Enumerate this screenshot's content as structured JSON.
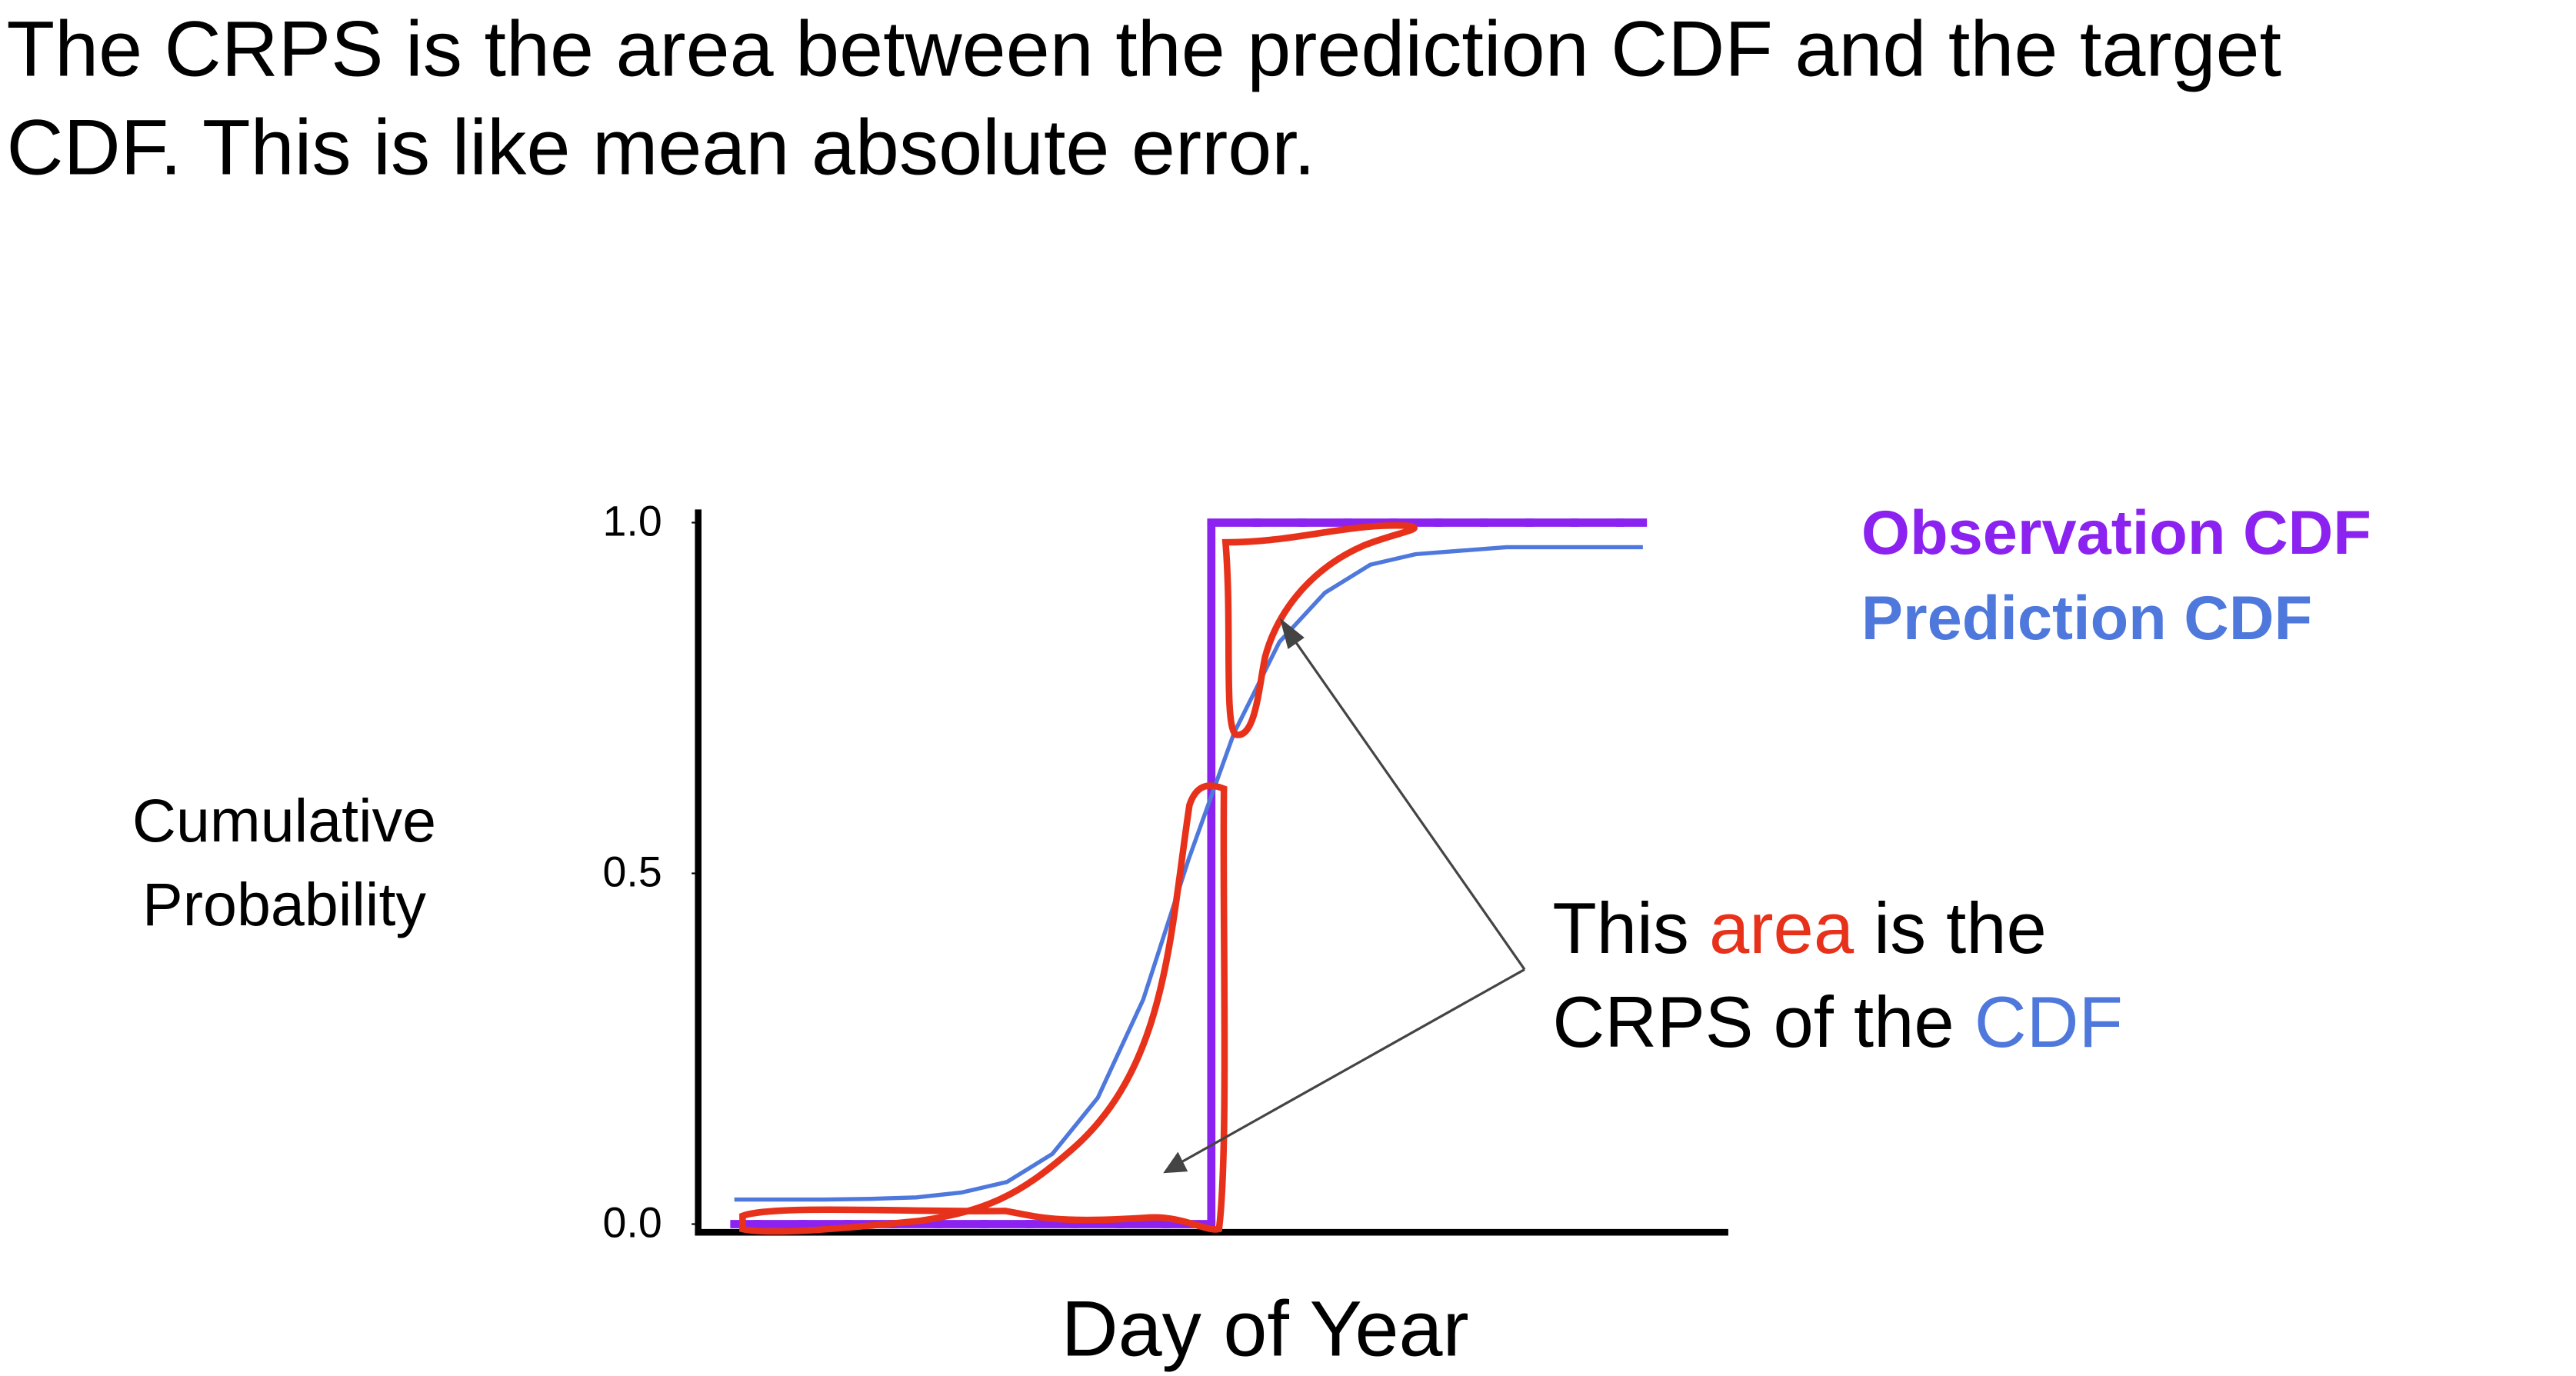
{
  "title_lines": [
    "The CRPS is the area between the prediction CDF and the target",
    "CDF. This is like mean absolute error."
  ],
  "chart_data": {
    "type": "line",
    "ylabel_lines": [
      "Cumulative",
      "Probability"
    ],
    "xlabel": "Day of Year",
    "categories": [
      null,
      null,
      null,
      null,
      null,
      null,
      null,
      null,
      null,
      null,
      null,
      null,
      null,
      null,
      null,
      null,
      null,
      null,
      null,
      null,
      null
    ],
    "ylim": [
      0,
      1
    ],
    "yticks": [
      {
        "value": 0,
        "label": "0.0"
      },
      {
        "value": 0.5,
        "label": "0.5"
      },
      {
        "value": 1,
        "label": "1.0"
      }
    ],
    "grid": false,
    "legend": "upper right",
    "series": [
      {
        "name": "Observation CDF",
        "color": "#8b22f0",
        "step": true,
        "values": [
          0,
          0,
          0,
          0,
          0,
          0,
          0,
          0,
          0,
          0,
          0,
          1,
          1,
          1,
          1,
          1,
          1,
          1,
          1,
          1,
          1
        ]
      },
      {
        "name": "Prediction CDF",
        "color": "#4f78dc",
        "step": false,
        "values": [
          0.035,
          0.035,
          0.035,
          0.036,
          0.038,
          0.045,
          0.06,
          0.1,
          0.18,
          0.32,
          0.52,
          0.7,
          0.83,
          0.9,
          0.94,
          0.955,
          0.96,
          0.965,
          0.965,
          0.965,
          0.965
        ]
      }
    ],
    "annotation": {
      "parts": [
        {
          "text": "This ",
          "color": "#000000"
        },
        {
          "text": "area",
          "color": "#e8311a"
        },
        {
          "text": " is the",
          "color": "#000000"
        },
        {
          "text": "CRPS of the ",
          "color": "#000000"
        },
        {
          "text": "CDF",
          "color": "#4f78dc"
        }
      ],
      "line_break_after": 2
    }
  }
}
